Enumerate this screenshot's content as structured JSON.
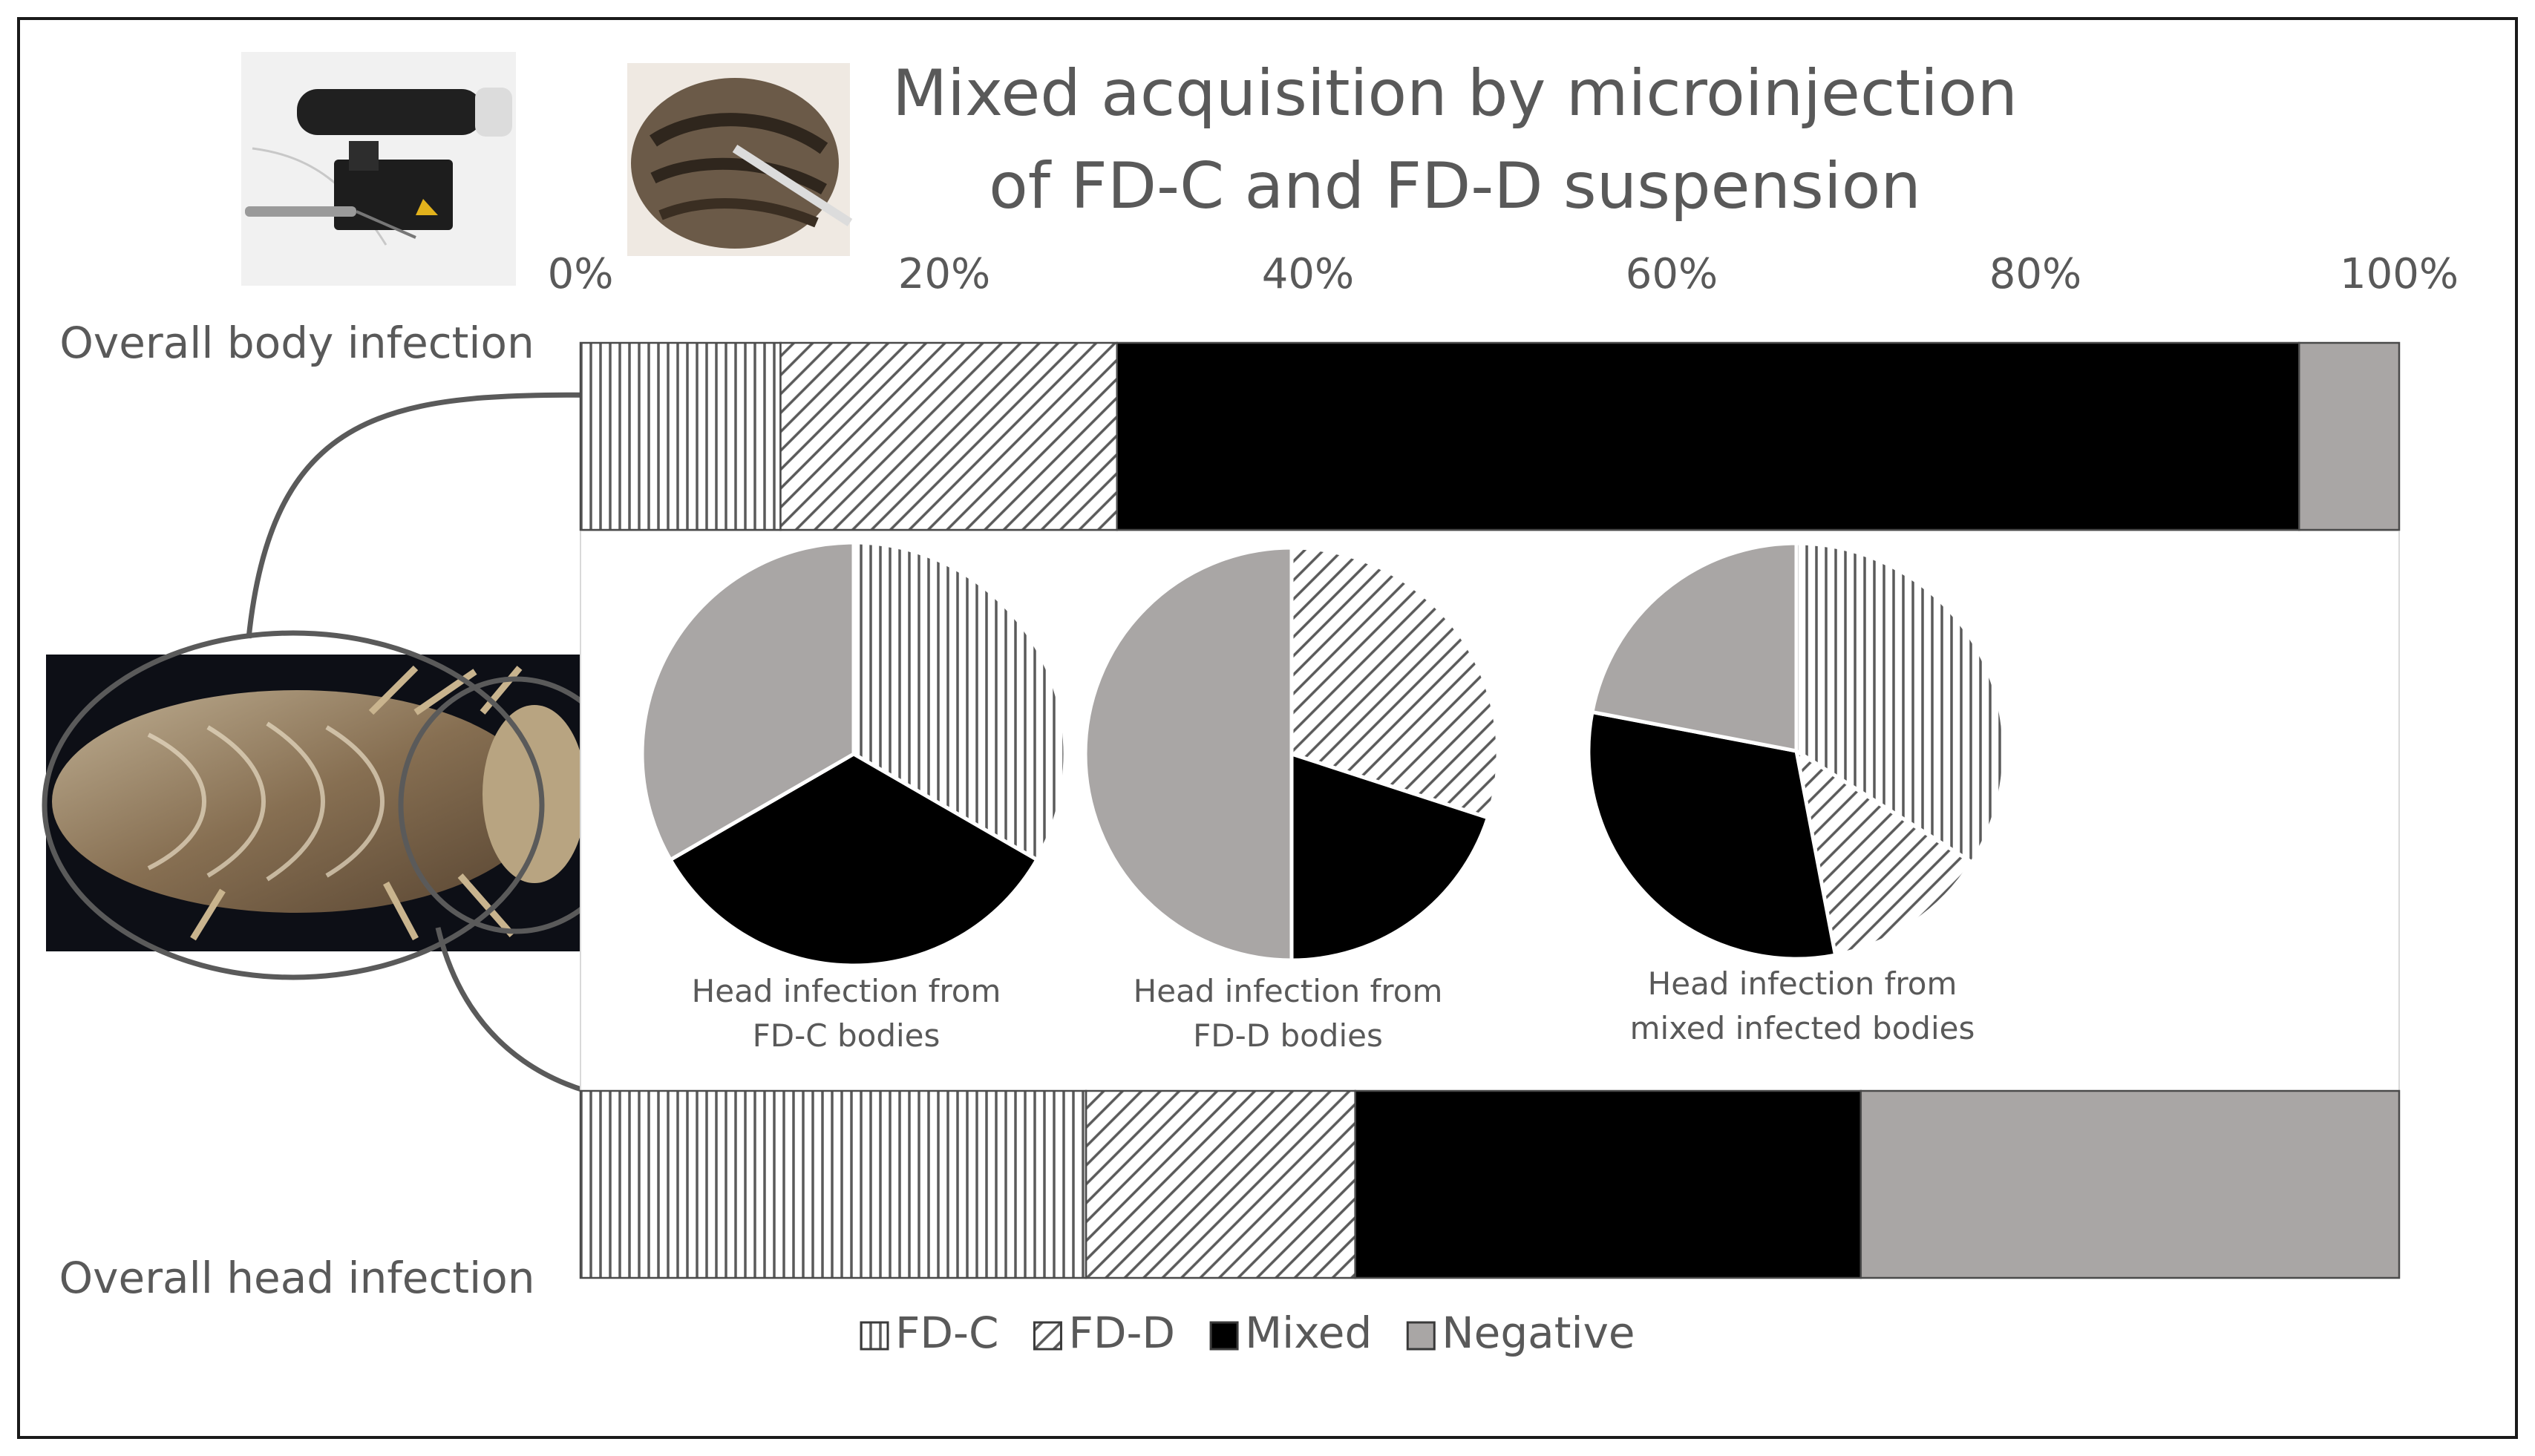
{
  "chart_data": {
    "type": "bar",
    "title_lines": [
      "Mixed acquisition by microinjection",
      "of FD-C and FD-D suspension"
    ],
    "x_ticks": [
      "0%",
      "20%",
      "40%",
      "60%",
      "80%",
      "100%"
    ],
    "xlim": [
      0,
      100
    ],
    "row_labels": [
      "Overall body infection",
      "Overall head infection"
    ],
    "categories": [
      "FD-C",
      "FD-D",
      "Mixed",
      "Negative"
    ],
    "bars": [
      {
        "label": "Overall body infection",
        "values": [
          11,
          18.5,
          65,
          5.5
        ]
      },
      {
        "label": "Overall head infection",
        "values": [
          27.8,
          14.8,
          27.8,
          29.6
        ]
      }
    ],
    "pies": [
      {
        "label_lines": [
          "Head infection from",
          "FD-C bodies"
        ],
        "values": [
          33.3,
          0,
          33.3,
          33.3
        ]
      },
      {
        "label_lines": [
          "Head infection from",
          "FD-D bodies"
        ],
        "values": [
          0,
          30,
          20,
          50
        ]
      },
      {
        "label_lines": [
          "Head infection from",
          "mixed infected bodies"
        ],
        "values": [
          34,
          13,
          31,
          22
        ]
      }
    ],
    "legend": [
      "FD-C",
      "FD-D",
      "Mixed",
      "Negative"
    ],
    "legend_position": "bottom",
    "colors": {
      "Mixed": "#000000",
      "Negative": "#a9a6a5",
      "pattern_stroke": "#5a5a5a",
      "text": "#595959",
      "arrow": "#5a5a5a"
    },
    "patterns": {
      "FD-C": "vertical-lines",
      "FD-D": "diagonal-lines"
    },
    "photos": [
      "microinjector-photo",
      "insect-injection-photo",
      "insect-ventral-photo"
    ]
  }
}
